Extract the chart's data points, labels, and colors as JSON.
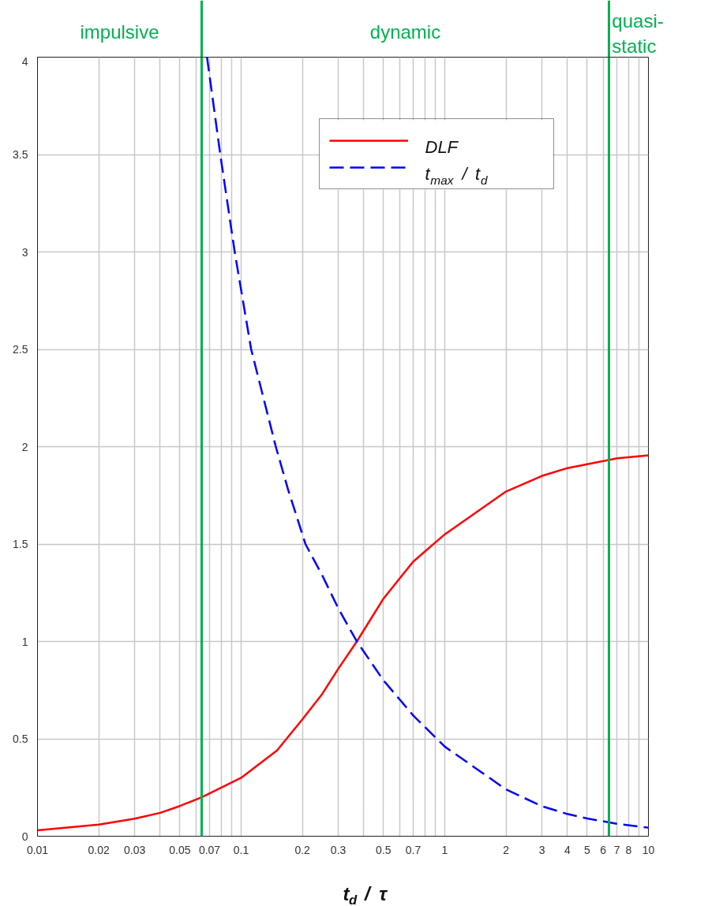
{
  "chart_data": {
    "type": "line",
    "xlabel": "t$_{d}$ / τ",
    "xlim": [
      0.01,
      10
    ],
    "ylim": [
      0,
      4
    ],
    "log": "x",
    "grid": true,
    "legend": "top",
    "xticks": [
      0.01,
      0.02,
      0.03,
      {
        "value": 0.04,
        "label": null
      },
      0.05,
      {
        "value": 0.06,
        "label": null
      },
      0.07,
      {
        "value": 0.08,
        "label": null
      },
      {
        "value": 0.09,
        "label": null
      },
      0.1,
      0.2,
      0.3,
      {
        "value": 0.4,
        "label": null
      },
      0.5,
      {
        "value": 0.6,
        "label": null
      },
      0.7,
      {
        "value": 0.8,
        "label": null
      },
      {
        "value": 0.9,
        "label": null
      },
      1,
      2,
      3,
      4,
      5,
      6,
      7,
      8,
      {
        "value": 9,
        "label": null
      },
      10
    ],
    "yticks": [
      0,
      0.5,
      1,
      1.5,
      2,
      2.5,
      3,
      3.5,
      4
    ],
    "series": [
      {
        "name": "DLF",
        "color": "#ff0000",
        "line_style": "solid",
        "x": [
          0.01,
          0.02,
          0.03,
          0.04,
          0.05,
          0.064,
          0.1,
          0.15,
          0.2,
          0.25,
          0.3,
          0.37,
          0.5,
          0.7,
          1,
          2,
          3,
          4,
          5,
          7,
          10
        ],
        "values": [
          0.03,
          0.06,
          0.09,
          0.12,
          0.155,
          0.2,
          0.3,
          0.44,
          0.6,
          0.73,
          0.86,
          1.0,
          1.22,
          1.41,
          1.55,
          1.77,
          1.85,
          1.89,
          1.91,
          1.94,
          1.955
        ]
      },
      {
        "name": "t$_{max}$ / t$_{d}$",
        "color": "#0000ff",
        "line_style": "dashed",
        "x": [
          0.068,
          0.079,
          0.093,
          0.112,
          0.148,
          0.17,
          0.207,
          0.25,
          0.3,
          0.37,
          0.5,
          0.7,
          1,
          2,
          3,
          4,
          5,
          7,
          10
        ],
        "values": [
          4,
          3.5,
          3.0,
          2.5,
          2.0,
          1.78,
          1.5,
          1.34,
          1.17,
          1.0,
          0.8,
          0.62,
          0.46,
          0.24,
          0.154,
          0.114,
          0.091,
          0.064,
          0.044
        ]
      }
    ],
    "ref_lines": [
      {
        "axis": "x",
        "value": 0.064,
        "color": "#00b050"
      },
      {
        "axis": "x",
        "value": 6.4,
        "color": "#00b050"
      }
    ],
    "annotations": [
      "impulsive",
      "dynamic",
      "quasi-\nstatic"
    ]
  }
}
